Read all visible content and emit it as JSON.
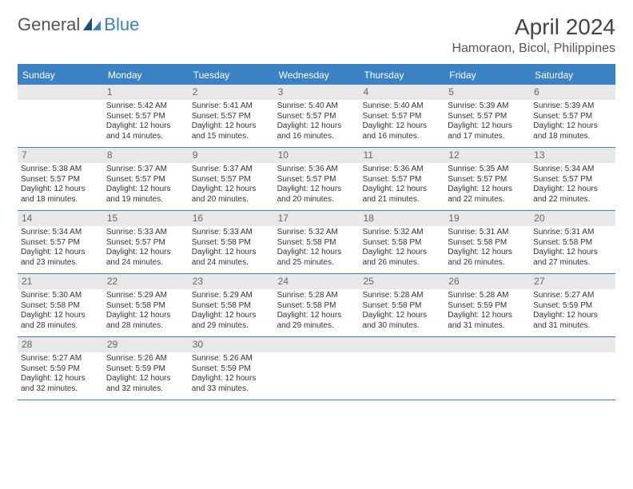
{
  "logo": {
    "text1": "General",
    "text2": "Blue"
  },
  "title": "April 2024",
  "location": "Hamoraon, Bicol, Philippines",
  "colors": {
    "header_bg": "#3b82c4",
    "daynum_bg": "#e8e8e8",
    "text": "#333333",
    "border": "#3b82c4"
  },
  "weekdays": [
    "Sunday",
    "Monday",
    "Tuesday",
    "Wednesday",
    "Thursday",
    "Friday",
    "Saturday"
  ],
  "weeks": [
    [
      {
        "n": "",
        "empty": true
      },
      {
        "n": "1",
        "sr": "Sunrise: 5:42 AM",
        "ss": "Sunset: 5:57 PM",
        "d1": "Daylight: 12 hours",
        "d2": "and 14 minutes."
      },
      {
        "n": "2",
        "sr": "Sunrise: 5:41 AM",
        "ss": "Sunset: 5:57 PM",
        "d1": "Daylight: 12 hours",
        "d2": "and 15 minutes."
      },
      {
        "n": "3",
        "sr": "Sunrise: 5:40 AM",
        "ss": "Sunset: 5:57 PM",
        "d1": "Daylight: 12 hours",
        "d2": "and 16 minutes."
      },
      {
        "n": "4",
        "sr": "Sunrise: 5:40 AM",
        "ss": "Sunset: 5:57 PM",
        "d1": "Daylight: 12 hours",
        "d2": "and 16 minutes."
      },
      {
        "n": "5",
        "sr": "Sunrise: 5:39 AM",
        "ss": "Sunset: 5:57 PM",
        "d1": "Daylight: 12 hours",
        "d2": "and 17 minutes."
      },
      {
        "n": "6",
        "sr": "Sunrise: 5:39 AM",
        "ss": "Sunset: 5:57 PM",
        "d1": "Daylight: 12 hours",
        "d2": "and 18 minutes."
      }
    ],
    [
      {
        "n": "7",
        "sr": "Sunrise: 5:38 AM",
        "ss": "Sunset: 5:57 PM",
        "d1": "Daylight: 12 hours",
        "d2": "and 18 minutes."
      },
      {
        "n": "8",
        "sr": "Sunrise: 5:37 AM",
        "ss": "Sunset: 5:57 PM",
        "d1": "Daylight: 12 hours",
        "d2": "and 19 minutes."
      },
      {
        "n": "9",
        "sr": "Sunrise: 5:37 AM",
        "ss": "Sunset: 5:57 PM",
        "d1": "Daylight: 12 hours",
        "d2": "and 20 minutes."
      },
      {
        "n": "10",
        "sr": "Sunrise: 5:36 AM",
        "ss": "Sunset: 5:57 PM",
        "d1": "Daylight: 12 hours",
        "d2": "and 20 minutes."
      },
      {
        "n": "11",
        "sr": "Sunrise: 5:36 AM",
        "ss": "Sunset: 5:57 PM",
        "d1": "Daylight: 12 hours",
        "d2": "and 21 minutes."
      },
      {
        "n": "12",
        "sr": "Sunrise: 5:35 AM",
        "ss": "Sunset: 5:57 PM",
        "d1": "Daylight: 12 hours",
        "d2": "and 22 minutes."
      },
      {
        "n": "13",
        "sr": "Sunrise: 5:34 AM",
        "ss": "Sunset: 5:57 PM",
        "d1": "Daylight: 12 hours",
        "d2": "and 22 minutes."
      }
    ],
    [
      {
        "n": "14",
        "sr": "Sunrise: 5:34 AM",
        "ss": "Sunset: 5:57 PM",
        "d1": "Daylight: 12 hours",
        "d2": "and 23 minutes."
      },
      {
        "n": "15",
        "sr": "Sunrise: 5:33 AM",
        "ss": "Sunset: 5:57 PM",
        "d1": "Daylight: 12 hours",
        "d2": "and 24 minutes."
      },
      {
        "n": "16",
        "sr": "Sunrise: 5:33 AM",
        "ss": "Sunset: 5:58 PM",
        "d1": "Daylight: 12 hours",
        "d2": "and 24 minutes."
      },
      {
        "n": "17",
        "sr": "Sunrise: 5:32 AM",
        "ss": "Sunset: 5:58 PM",
        "d1": "Daylight: 12 hours",
        "d2": "and 25 minutes."
      },
      {
        "n": "18",
        "sr": "Sunrise: 5:32 AM",
        "ss": "Sunset: 5:58 PM",
        "d1": "Daylight: 12 hours",
        "d2": "and 26 minutes."
      },
      {
        "n": "19",
        "sr": "Sunrise: 5:31 AM",
        "ss": "Sunset: 5:58 PM",
        "d1": "Daylight: 12 hours",
        "d2": "and 26 minutes."
      },
      {
        "n": "20",
        "sr": "Sunrise: 5:31 AM",
        "ss": "Sunset: 5:58 PM",
        "d1": "Daylight: 12 hours",
        "d2": "and 27 minutes."
      }
    ],
    [
      {
        "n": "21",
        "sr": "Sunrise: 5:30 AM",
        "ss": "Sunset: 5:58 PM",
        "d1": "Daylight: 12 hours",
        "d2": "and 28 minutes."
      },
      {
        "n": "22",
        "sr": "Sunrise: 5:29 AM",
        "ss": "Sunset: 5:58 PM",
        "d1": "Daylight: 12 hours",
        "d2": "and 28 minutes."
      },
      {
        "n": "23",
        "sr": "Sunrise: 5:29 AM",
        "ss": "Sunset: 5:58 PM",
        "d1": "Daylight: 12 hours",
        "d2": "and 29 minutes."
      },
      {
        "n": "24",
        "sr": "Sunrise: 5:28 AM",
        "ss": "Sunset: 5:58 PM",
        "d1": "Daylight: 12 hours",
        "d2": "and 29 minutes."
      },
      {
        "n": "25",
        "sr": "Sunrise: 5:28 AM",
        "ss": "Sunset: 5:58 PM",
        "d1": "Daylight: 12 hours",
        "d2": "and 30 minutes."
      },
      {
        "n": "26",
        "sr": "Sunrise: 5:28 AM",
        "ss": "Sunset: 5:59 PM",
        "d1": "Daylight: 12 hours",
        "d2": "and 31 minutes."
      },
      {
        "n": "27",
        "sr": "Sunrise: 5:27 AM",
        "ss": "Sunset: 5:59 PM",
        "d1": "Daylight: 12 hours",
        "d2": "and 31 minutes."
      }
    ],
    [
      {
        "n": "28",
        "sr": "Sunrise: 5:27 AM",
        "ss": "Sunset: 5:59 PM",
        "d1": "Daylight: 12 hours",
        "d2": "and 32 minutes."
      },
      {
        "n": "29",
        "sr": "Sunrise: 5:26 AM",
        "ss": "Sunset: 5:59 PM",
        "d1": "Daylight: 12 hours",
        "d2": "and 32 minutes."
      },
      {
        "n": "30",
        "sr": "Sunrise: 5:26 AM",
        "ss": "Sunset: 5:59 PM",
        "d1": "Daylight: 12 hours",
        "d2": "and 33 minutes."
      },
      {
        "n": "",
        "empty": true
      },
      {
        "n": "",
        "empty": true
      },
      {
        "n": "",
        "empty": true
      },
      {
        "n": "",
        "empty": true
      }
    ]
  ]
}
